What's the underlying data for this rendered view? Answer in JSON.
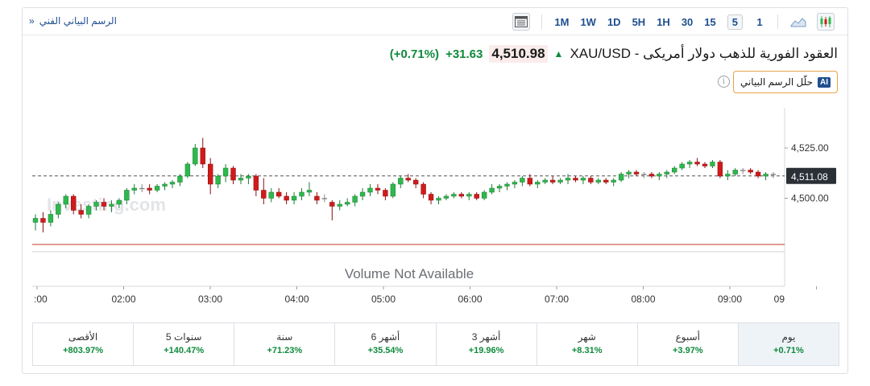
{
  "toolbar": {
    "technical_link": "الرسم البياني الفني",
    "technical_chevron": "»",
    "timeframes": [
      "1M",
      "1W",
      "1D",
      "5H",
      "1H",
      "30",
      "15",
      "5",
      "1"
    ],
    "active_timeframe": "5"
  },
  "header": {
    "instrument": "XAU/USD - العقود الفورية للذهب دولار أمريكى",
    "price": "4,510.98",
    "change_abs": "+31.63",
    "change_pct": "(+0.71%)",
    "up_color": "#0f8a3c"
  },
  "ai_button": {
    "badge": "AI",
    "label": "حلّل الرسم البياني"
  },
  "info_icon": "i",
  "chart_data": {
    "type": "candlestick",
    "watermark": "Investing.com",
    "volume_text": "Volume Not Available",
    "x_tick_labels": [
      ":00",
      "02:00",
      "03:00",
      "04:00",
      "05:00",
      "06:00",
      "07:00",
      "08:00",
      "09:00",
      "09"
    ],
    "y_tick_labels": [
      "4,525.00",
      "4,500.00"
    ],
    "y_ticks": [
      4525,
      4500
    ],
    "ylim": [
      4481,
      4545
    ],
    "current_price_label": "4,511.08",
    "current_price": 4511.08,
    "colors": {
      "up": "#2db94d",
      "down": "#d11a1a",
      "doji": "#8a8a8a"
    },
    "candles": [
      [
        4488,
        4492,
        4484,
        4490
      ],
      [
        4490,
        4493,
        4483,
        4488
      ],
      [
        4488,
        4494,
        4486,
        4492
      ],
      [
        4492,
        4498,
        4490,
        4497
      ],
      [
        4497,
        4502,
        4495,
        4501
      ],
      [
        4501,
        4502,
        4492,
        4494
      ],
      [
        4494,
        4497,
        4490,
        4492
      ],
      [
        4492,
        4497,
        4490,
        4496
      ],
      [
        4496,
        4499,
        4494,
        4498
      ],
      [
        4498,
        4500,
        4494,
        4496
      ],
      [
        4496,
        4499,
        4493,
        4497
      ],
      [
        4497,
        4500,
        4495,
        4499
      ],
      [
        4499,
        4505,
        4497,
        4504
      ],
      [
        4504,
        4507,
        4502,
        4505
      ],
      [
        4505,
        4507,
        4503,
        4505
      ],
      [
        4505,
        4507,
        4502,
        4504
      ],
      [
        4504,
        4507,
        4503,
        4506
      ],
      [
        4506,
        4508,
        4504,
        4507
      ],
      [
        4507,
        4509,
        4505,
        4508
      ],
      [
        4508,
        4512,
        4506,
        4511
      ],
      [
        4511,
        4518,
        4510,
        4517
      ],
      [
        4517,
        4527,
        4516,
        4525
      ],
      [
        4525,
        4530,
        4515,
        4517
      ],
      [
        4517,
        4520,
        4502,
        4507
      ],
      [
        4507,
        4512,
        4505,
        4511
      ],
      [
        4511,
        4517,
        4508,
        4515
      ],
      [
        4515,
        4516,
        4507,
        4509
      ],
      [
        4509,
        4512,
        4507,
        4510
      ],
      [
        4510,
        4512,
        4507,
        4511
      ],
      [
        4511,
        4512,
        4501,
        4504
      ],
      [
        4504,
        4510,
        4497,
        4500
      ],
      [
        4500,
        4505,
        4498,
        4503
      ],
      [
        4503,
        4505,
        4500,
        4501
      ],
      [
        4501,
        4503,
        4497,
        4499
      ],
      [
        4499,
        4503,
        4497,
        4501
      ],
      [
        4501,
        4505,
        4499,
        4503
      ],
      [
        4503,
        4508,
        4501,
        4504
      ],
      [
        4501,
        4503,
        4497,
        4499
      ],
      [
        4500,
        4502,
        4498,
        4500
      ],
      [
        4498,
        4499,
        4489,
        4496
      ],
      [
        4496,
        4499,
        4494,
        4497
      ],
      [
        4497,
        4500,
        4496,
        4498
      ],
      [
        4498,
        4502,
        4496,
        4501
      ],
      [
        4501,
        4505,
        4499,
        4503
      ],
      [
        4503,
        4507,
        4501,
        4505
      ],
      [
        4505,
        4507,
        4502,
        4504
      ],
      [
        4504,
        4505,
        4499,
        4501
      ],
      [
        4501,
        4508,
        4500,
        4507
      ],
      [
        4507,
        4511,
        4505,
        4510
      ],
      [
        4510,
        4512,
        4508,
        4509
      ],
      [
        4509,
        4510,
        4505,
        4507
      ],
      [
        4507,
        4508,
        4500,
        4502
      ],
      [
        4502,
        4503,
        4497,
        4499
      ],
      [
        4499,
        4501,
        4497,
        4500
      ],
      [
        4500,
        4502,
        4499,
        4501
      ],
      [
        4501,
        4503,
        4500,
        4502
      ],
      [
        4502,
        4503,
        4500,
        4501
      ],
      [
        4501,
        4503,
        4499,
        4502
      ],
      [
        4502,
        4503,
        4499,
        4500
      ],
      [
        4500,
        4504,
        4499,
        4503
      ],
      [
        4503,
        4507,
        4502,
        4505
      ],
      [
        4505,
        4507,
        4503,
        4506
      ],
      [
        4506,
        4508,
        4504,
        4507
      ],
      [
        4507,
        4509,
        4505,
        4508
      ],
      [
        4508,
        4511,
        4506,
        4510
      ],
      [
        4510,
        4512,
        4506,
        4507
      ],
      [
        4507,
        4509,
        4505,
        4508
      ],
      [
        4508,
        4510,
        4507,
        4509
      ],
      [
        4509,
        4511,
        4507,
        4508
      ],
      [
        4508,
        4510,
        4507,
        4509
      ],
      [
        4509,
        4512,
        4507,
        4510
      ],
      [
        4510,
        4511,
        4508,
        4509
      ],
      [
        4509,
        4511,
        4507,
        4510
      ],
      [
        4510,
        4511,
        4507,
        4508
      ],
      [
        4508,
        4510,
        4507,
        4509
      ],
      [
        4509,
        4510,
        4507,
        4508
      ],
      [
        4508,
        4510,
        4506,
        4509
      ],
      [
        4509,
        4513,
        4508,
        4512
      ],
      [
        4512,
        4514,
        4510,
        4513
      ],
      [
        4513,
        4514,
        4511,
        4512
      ],
      [
        4512,
        4513,
        4510,
        4512
      ],
      [
        4512,
        4513,
        4510,
        4511
      ],
      [
        4511,
        4513,
        4509,
        4512
      ],
      [
        4512,
        4514,
        4510,
        4513
      ],
      [
        4513,
        4516,
        4512,
        4515
      ],
      [
        4515,
        4518,
        4514,
        4517
      ],
      [
        4517,
        4519,
        4515,
        4518
      ],
      [
        4518,
        4520,
        4516,
        4517
      ],
      [
        4517,
        4518,
        4515,
        4516
      ],
      [
        4516,
        4519,
        4515,
        4518
      ],
      [
        4518,
        4519,
        4510,
        4511
      ],
      [
        4511,
        4514,
        4509,
        4512
      ],
      [
        4512,
        4515,
        4511,
        4514
      ],
      [
        4514,
        4515,
        4512,
        4514
      ],
      [
        4514,
        4515,
        4512,
        4513
      ],
      [
        4513,
        4514,
        4510,
        4511
      ],
      [
        4511,
        4513,
        4509,
        4512
      ],
      [
        4512,
        4513,
        4510,
        4512
      ]
    ]
  },
  "performance": [
    {
      "label": "يوم",
      "value": "+0.71%",
      "active": true
    },
    {
      "label": "أسبوع",
      "value": "+3.97%"
    },
    {
      "label": "شهر",
      "value": "+8.31%"
    },
    {
      "label": "3 أشهر",
      "value": "+19.96%"
    },
    {
      "label": "6 أشهر",
      "value": "+35.54%"
    },
    {
      "label": "سنة",
      "value": "+71.23%"
    },
    {
      "label": "5 سنوات",
      "value": "+140.47%"
    },
    {
      "label": "الأقصى",
      "value": "+803.97%"
    }
  ]
}
